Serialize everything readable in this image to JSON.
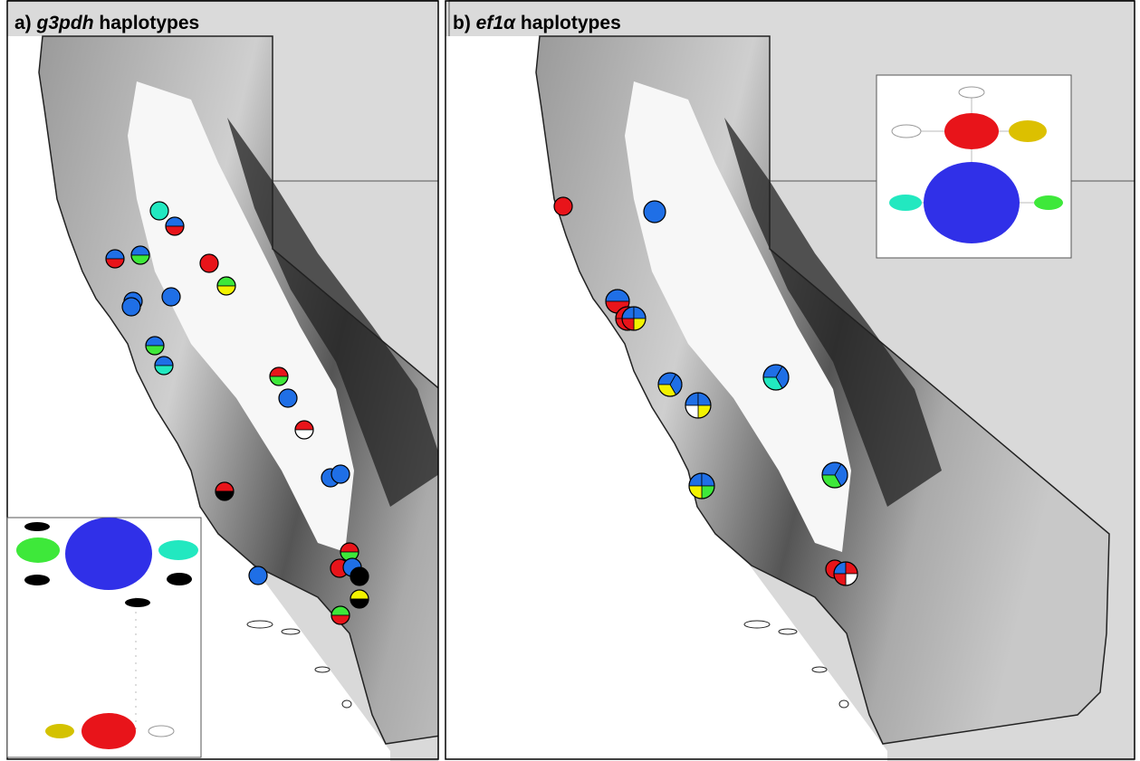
{
  "panels": [
    {
      "label": "a)",
      "gene": "g3pdh",
      "rest": "haplotypes"
    },
    {
      "label": "b)",
      "gene": "ef1α",
      "rest": "haplotypes"
    }
  ]
}
